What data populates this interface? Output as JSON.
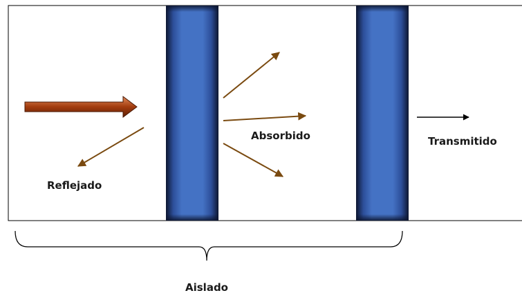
{
  "labels": {
    "reflected": "Reflejado",
    "absorbed": "Absorbido",
    "transmitted": "Transmitido",
    "insulated": "Aislado"
  },
  "colors": {
    "panel": "#4472c4",
    "panel_edge": "#0d1630",
    "incident_arrow": "#b54a1a",
    "ray_arrows": "#7a4a10",
    "transmitted_arrow": "#000000",
    "frame": "#000000",
    "brace": "#000000"
  }
}
